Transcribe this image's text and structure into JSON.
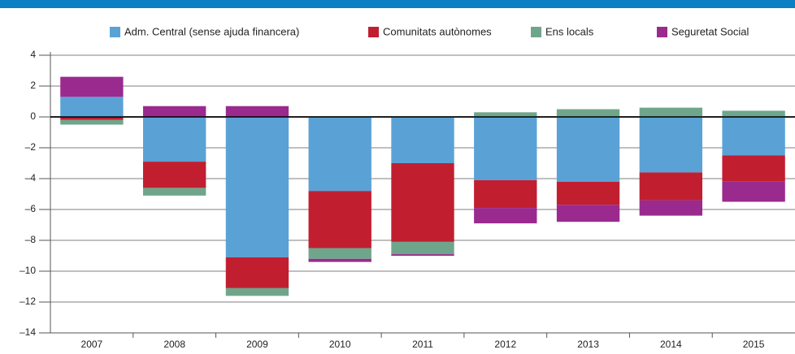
{
  "chart_data": {
    "type": "bar",
    "stacked": true,
    "categories": [
      "2007",
      "2008",
      "2009",
      "2010",
      "2011",
      "2012",
      "2013",
      "2014",
      "2015"
    ],
    "series": [
      {
        "name": "Adm. Central (sense ajuda financera)",
        "color": "#5aa2d6",
        "values": [
          1.3,
          -2.9,
          -9.1,
          -4.8,
          -3.0,
          -4.1,
          -4.2,
          -3.6,
          -2.5
        ]
      },
      {
        "name": "Comunitats autònomes",
        "color": "#c11f30",
        "values": [
          -0.2,
          -1.7,
          -2.0,
          -3.7,
          -5.1,
          -1.8,
          -1.5,
          -1.8,
          -1.7
        ]
      },
      {
        "name": "Ens locals",
        "color": "#6fa68b",
        "values": [
          -0.3,
          -0.5,
          -0.5,
          -0.7,
          -0.8,
          0.3,
          0.5,
          0.6,
          0.4
        ]
      },
      {
        "name": "Seguretat Social",
        "color": "#9a2a8e",
        "values": [
          1.3,
          0.7,
          0.7,
          -0.2,
          -0.1,
          -1.0,
          -1.1,
          -1.0,
          -1.3
        ]
      }
    ],
    "ylim": [
      -14,
      4
    ],
    "yticks": [
      {
        "value": -14,
        "label": "–14"
      },
      {
        "value": -12,
        "label": "–12"
      },
      {
        "value": -10,
        "label": "–10"
      },
      {
        "value": -8,
        "label": "–8"
      },
      {
        "value": -6,
        "label": "–6"
      },
      {
        "value": -4,
        "label": "–4"
      },
      {
        "value": -2,
        "label": "–2"
      },
      0,
      2,
      4
    ],
    "grid": true,
    "legend": "top"
  }
}
